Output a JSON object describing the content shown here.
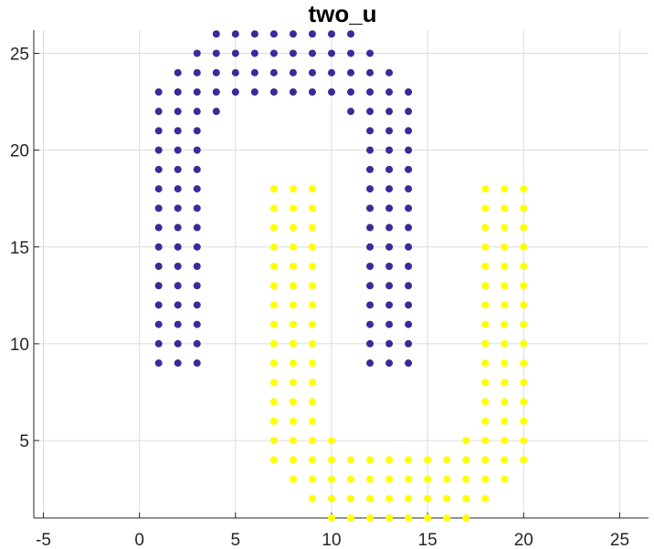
{
  "chart_data": {
    "type": "scatter",
    "title": "two_u",
    "xlabel": "",
    "ylabel": "",
    "xlim": [
      -5.5,
      26.5
    ],
    "ylim": [
      1,
      26.2
    ],
    "xticks": [
      -5,
      0,
      5,
      10,
      15,
      20,
      25
    ],
    "yticks": [
      5,
      10,
      15,
      20,
      25
    ],
    "grid": true,
    "legend": "none",
    "series": [
      {
        "color": "#3a2a9a",
        "points": [
          [
            4,
            26
          ],
          [
            5,
            26
          ],
          [
            6,
            26
          ],
          [
            7,
            26
          ],
          [
            8,
            26
          ],
          [
            9,
            26
          ],
          [
            10,
            26
          ],
          [
            11,
            26
          ],
          [
            3,
            25
          ],
          [
            4,
            25
          ],
          [
            5,
            25
          ],
          [
            6,
            25
          ],
          [
            7,
            25
          ],
          [
            8,
            25
          ],
          [
            9,
            25
          ],
          [
            10,
            25
          ],
          [
            11,
            25
          ],
          [
            12,
            25
          ],
          [
            2,
            24
          ],
          [
            3,
            24
          ],
          [
            4,
            24
          ],
          [
            5,
            24
          ],
          [
            6,
            24
          ],
          [
            7,
            24
          ],
          [
            8,
            24
          ],
          [
            9,
            24
          ],
          [
            10,
            24
          ],
          [
            11,
            24
          ],
          [
            12,
            24
          ],
          [
            13,
            24
          ],
          [
            1,
            23
          ],
          [
            2,
            23
          ],
          [
            3,
            23
          ],
          [
            4,
            23
          ],
          [
            5,
            23
          ],
          [
            6,
            23
          ],
          [
            7,
            23
          ],
          [
            8,
            23
          ],
          [
            9,
            23
          ],
          [
            10,
            23
          ],
          [
            11,
            23
          ],
          [
            12,
            23
          ],
          [
            13,
            23
          ],
          [
            14,
            23
          ],
          [
            1,
            22
          ],
          [
            2,
            22
          ],
          [
            3,
            22
          ],
          [
            4,
            22
          ],
          [
            11,
            22
          ],
          [
            12,
            22
          ],
          [
            13,
            22
          ],
          [
            14,
            22
          ],
          [
            1,
            21
          ],
          [
            2,
            21
          ],
          [
            3,
            21
          ],
          [
            12,
            21
          ],
          [
            13,
            21
          ],
          [
            14,
            21
          ],
          [
            1,
            20
          ],
          [
            2,
            20
          ],
          [
            3,
            20
          ],
          [
            12,
            20
          ],
          [
            13,
            20
          ],
          [
            14,
            20
          ],
          [
            1,
            19
          ],
          [
            2,
            19
          ],
          [
            3,
            19
          ],
          [
            12,
            19
          ],
          [
            13,
            19
          ],
          [
            14,
            19
          ],
          [
            1,
            18
          ],
          [
            2,
            18
          ],
          [
            3,
            18
          ],
          [
            12,
            18
          ],
          [
            13,
            18
          ],
          [
            14,
            18
          ],
          [
            1,
            17
          ],
          [
            2,
            17
          ],
          [
            3,
            17
          ],
          [
            12,
            17
          ],
          [
            13,
            17
          ],
          [
            14,
            17
          ],
          [
            1,
            16
          ],
          [
            2,
            16
          ],
          [
            3,
            16
          ],
          [
            12,
            16
          ],
          [
            13,
            16
          ],
          [
            14,
            16
          ],
          [
            1,
            15
          ],
          [
            2,
            15
          ],
          [
            3,
            15
          ],
          [
            12,
            15
          ],
          [
            13,
            15
          ],
          [
            14,
            15
          ],
          [
            1,
            14
          ],
          [
            2,
            14
          ],
          [
            3,
            14
          ],
          [
            12,
            14
          ],
          [
            13,
            14
          ],
          [
            14,
            14
          ],
          [
            1,
            13
          ],
          [
            2,
            13
          ],
          [
            3,
            13
          ],
          [
            12,
            13
          ],
          [
            13,
            13
          ],
          [
            14,
            13
          ],
          [
            1,
            12
          ],
          [
            2,
            12
          ],
          [
            3,
            12
          ],
          [
            12,
            12
          ],
          [
            13,
            12
          ],
          [
            14,
            12
          ],
          [
            1,
            11
          ],
          [
            2,
            11
          ],
          [
            3,
            11
          ],
          [
            12,
            11
          ],
          [
            13,
            11
          ],
          [
            14,
            11
          ],
          [
            1,
            10
          ],
          [
            2,
            10
          ],
          [
            3,
            10
          ],
          [
            12,
            10
          ],
          [
            13,
            10
          ],
          [
            14,
            10
          ],
          [
            1,
            9
          ],
          [
            2,
            9
          ],
          [
            3,
            9
          ],
          [
            12,
            9
          ],
          [
            13,
            9
          ],
          [
            14,
            9
          ]
        ]
      },
      {
        "color": "#ffff00",
        "points": [
          [
            7,
            18
          ],
          [
            8,
            18
          ],
          [
            9,
            18
          ],
          [
            18,
            18
          ],
          [
            19,
            18
          ],
          [
            20,
            18
          ],
          [
            7,
            17
          ],
          [
            8,
            17
          ],
          [
            9,
            17
          ],
          [
            18,
            17
          ],
          [
            19,
            17
          ],
          [
            20,
            17
          ],
          [
            7,
            16
          ],
          [
            8,
            16
          ],
          [
            9,
            16
          ],
          [
            18,
            16
          ],
          [
            19,
            16
          ],
          [
            20,
            16
          ],
          [
            7,
            15
          ],
          [
            8,
            15
          ],
          [
            9,
            15
          ],
          [
            18,
            15
          ],
          [
            19,
            15
          ],
          [
            20,
            15
          ],
          [
            7,
            14
          ],
          [
            8,
            14
          ],
          [
            9,
            14
          ],
          [
            18,
            14
          ],
          [
            19,
            14
          ],
          [
            20,
            14
          ],
          [
            7,
            13
          ],
          [
            8,
            13
          ],
          [
            9,
            13
          ],
          [
            18,
            13
          ],
          [
            19,
            13
          ],
          [
            20,
            13
          ],
          [
            7,
            12
          ],
          [
            8,
            12
          ],
          [
            9,
            12
          ],
          [
            18,
            12
          ],
          [
            19,
            12
          ],
          [
            20,
            12
          ],
          [
            7,
            11
          ],
          [
            8,
            11
          ],
          [
            9,
            11
          ],
          [
            18,
            11
          ],
          [
            19,
            11
          ],
          [
            20,
            11
          ],
          [
            7,
            10
          ],
          [
            8,
            10
          ],
          [
            9,
            10
          ],
          [
            18,
            10
          ],
          [
            19,
            10
          ],
          [
            20,
            10
          ],
          [
            7,
            9
          ],
          [
            8,
            9
          ],
          [
            9,
            9
          ],
          [
            18,
            9
          ],
          [
            19,
            9
          ],
          [
            20,
            9
          ],
          [
            7,
            8
          ],
          [
            8,
            8
          ],
          [
            9,
            8
          ],
          [
            18,
            8
          ],
          [
            19,
            8
          ],
          [
            20,
            8
          ],
          [
            7,
            7
          ],
          [
            8,
            7
          ],
          [
            9,
            7
          ],
          [
            18,
            7
          ],
          [
            19,
            7
          ],
          [
            20,
            7
          ],
          [
            7,
            6
          ],
          [
            8,
            6
          ],
          [
            9,
            6
          ],
          [
            18,
            6
          ],
          [
            19,
            6
          ],
          [
            20,
            6
          ],
          [
            7,
            5
          ],
          [
            8,
            5
          ],
          [
            9,
            5
          ],
          [
            10,
            5
          ],
          [
            17,
            5
          ],
          [
            18,
            5
          ],
          [
            19,
            5
          ],
          [
            20,
            5
          ],
          [
            7,
            4
          ],
          [
            8,
            4
          ],
          [
            9,
            4
          ],
          [
            10,
            4
          ],
          [
            11,
            4
          ],
          [
            12,
            4
          ],
          [
            13,
            4
          ],
          [
            14,
            4
          ],
          [
            15,
            4
          ],
          [
            16,
            4
          ],
          [
            17,
            4
          ],
          [
            18,
            4
          ],
          [
            19,
            4
          ],
          [
            20,
            4
          ],
          [
            8,
            3
          ],
          [
            9,
            3
          ],
          [
            10,
            3
          ],
          [
            11,
            3
          ],
          [
            12,
            3
          ],
          [
            13,
            3
          ],
          [
            14,
            3
          ],
          [
            15,
            3
          ],
          [
            16,
            3
          ],
          [
            17,
            3
          ],
          [
            18,
            3
          ],
          [
            19,
            3
          ],
          [
            9,
            2
          ],
          [
            10,
            2
          ],
          [
            11,
            2
          ],
          [
            12,
            2
          ],
          [
            13,
            2
          ],
          [
            14,
            2
          ],
          [
            15,
            2
          ],
          [
            16,
            2
          ],
          [
            17,
            2
          ],
          [
            18,
            2
          ],
          [
            10,
            1
          ],
          [
            11,
            1
          ],
          [
            12,
            1
          ],
          [
            13,
            1
          ],
          [
            14,
            1
          ],
          [
            15,
            1
          ],
          [
            16,
            1
          ],
          [
            17,
            1
          ]
        ]
      }
    ]
  }
}
